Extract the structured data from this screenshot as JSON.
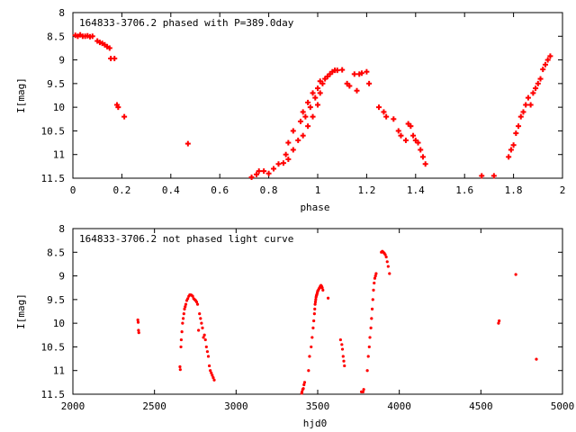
{
  "chart_data": [
    {
      "type": "scatter",
      "title": "164833-3706.2 phased with P=389.0day",
      "xlabel": "phase",
      "ylabel": "I[mag]",
      "xlim": [
        0,
        2
      ],
      "ylim": [
        11.5,
        8
      ],
      "y_inverted": true,
      "x_ticks": [
        "0",
        "0.2",
        "0.4",
        "0.6",
        "0.8",
        "1",
        "1.2",
        "1.4",
        "1.6",
        "1.8",
        "2"
      ],
      "y_ticks": [
        "8",
        "8.5",
        "9",
        "9.5",
        "10",
        "10.5",
        "11",
        "11.5"
      ],
      "x_tick_values": [
        0,
        0.2,
        0.4,
        0.6,
        0.8,
        1,
        1.2,
        1.4,
        1.6,
        1.8,
        2
      ],
      "y_tick_values": [
        8,
        8.5,
        9,
        9.5,
        10,
        10.5,
        11,
        11.5
      ],
      "grid": false,
      "marker": "plus",
      "color": "#ff0000",
      "series": [
        {
          "values": [
            [
              0.01,
              8.48
            ],
            [
              0.02,
              8.5
            ],
            [
              0.03,
              8.47
            ],
            [
              0.04,
              8.5
            ],
            [
              0.05,
              8.5
            ],
            [
              0.06,
              8.49
            ],
            [
              0.07,
              8.51
            ],
            [
              0.08,
              8.5
            ],
            [
              0.1,
              8.6
            ],
            [
              0.11,
              8.63
            ],
            [
              0.12,
              8.65
            ],
            [
              0.13,
              8.68
            ],
            [
              0.14,
              8.72
            ],
            [
              0.15,
              8.75
            ],
            [
              0.155,
              8.97
            ],
            [
              0.17,
              8.97
            ],
            [
              0.18,
              9.95
            ],
            [
              0.185,
              10.0
            ],
            [
              0.21,
              10.2
            ],
            [
              0.47,
              10.77
            ],
            [
              0.73,
              11.48
            ],
            [
              0.75,
              11.42
            ],
            [
              0.76,
              11.35
            ],
            [
              0.78,
              11.35
            ],
            [
              0.8,
              11.4
            ],
            [
              0.82,
              11.3
            ],
            [
              0.84,
              11.2
            ],
            [
              0.86,
              11.18
            ],
            [
              0.87,
              11.0
            ],
            [
              0.88,
              11.1
            ],
            [
              0.88,
              10.75
            ],
            [
              0.9,
              10.5
            ],
            [
              0.9,
              10.9
            ],
            [
              0.92,
              10.7
            ],
            [
              0.93,
              10.3
            ],
            [
              0.94,
              10.1
            ],
            [
              0.94,
              10.6
            ],
            [
              0.95,
              10.2
            ],
            [
              0.96,
              9.9
            ],
            [
              0.96,
              10.4
            ],
            [
              0.97,
              10.0
            ],
            [
              0.98,
              9.7
            ],
            [
              0.98,
              10.2
            ],
            [
              0.99,
              9.8
            ],
            [
              1.0,
              9.6
            ],
            [
              1.0,
              9.95
            ],
            [
              1.01,
              9.45
            ],
            [
              1.01,
              9.7
            ],
            [
              1.02,
              9.5
            ],
            [
              1.03,
              9.4
            ],
            [
              1.04,
              9.35
            ],
            [
              1.05,
              9.3
            ],
            [
              1.06,
              9.25
            ],
            [
              1.07,
              9.22
            ],
            [
              1.08,
              9.22
            ],
            [
              1.1,
              9.21
            ],
            [
              1.12,
              9.5
            ],
            [
              1.13,
              9.55
            ],
            [
              1.15,
              9.3
            ],
            [
              1.16,
              9.65
            ],
            [
              1.17,
              9.3
            ],
            [
              1.18,
              9.28
            ],
            [
              1.2,
              9.25
            ],
            [
              1.21,
              9.5
            ],
            [
              1.25,
              10.0
            ],
            [
              1.27,
              10.1
            ],
            [
              1.28,
              10.2
            ],
            [
              1.31,
              10.25
            ],
            [
              1.33,
              10.5
            ],
            [
              1.34,
              10.6
            ],
            [
              1.36,
              10.7
            ],
            [
              1.37,
              10.35
            ],
            [
              1.38,
              10.4
            ],
            [
              1.39,
              10.6
            ],
            [
              1.4,
              10.7
            ],
            [
              1.41,
              10.75
            ],
            [
              1.42,
              10.9
            ],
            [
              1.43,
              11.05
            ],
            [
              1.44,
              11.2
            ],
            [
              1.67,
              11.45
            ],
            [
              1.72,
              11.45
            ],
            [
              1.78,
              11.05
            ],
            [
              1.79,
              10.9
            ],
            [
              1.8,
              10.8
            ],
            [
              1.81,
              10.55
            ],
            [
              1.82,
              10.4
            ],
            [
              1.83,
              10.2
            ],
            [
              1.84,
              10.1
            ],
            [
              1.85,
              9.95
            ],
            [
              1.86,
              9.8
            ],
            [
              1.87,
              9.95
            ],
            [
              1.88,
              9.7
            ],
            [
              1.89,
              9.6
            ],
            [
              1.9,
              9.5
            ],
            [
              1.91,
              9.4
            ],
            [
              1.92,
              9.2
            ],
            [
              1.93,
              9.1
            ],
            [
              1.94,
              9.0
            ],
            [
              1.95,
              8.92
            ]
          ]
        }
      ]
    },
    {
      "type": "scatter",
      "title": "164833-3706.2 not phased light curve",
      "xlabel": "hjd0",
      "ylabel": "I[mag]",
      "xlim": [
        2000,
        5000
      ],
      "ylim": [
        11.5,
        8
      ],
      "y_inverted": true,
      "x_ticks": [
        "2000",
        "2500",
        "3000",
        "3500",
        "4000",
        "4500",
        "5000"
      ],
      "y_ticks": [
        "8",
        "8.5",
        "9",
        "9.5",
        "10",
        "10.5",
        "11",
        "11.5"
      ],
      "x_tick_values": [
        2000,
        2500,
        3000,
        3500,
        4000,
        4500,
        5000
      ],
      "y_tick_values": [
        8,
        8.5,
        9,
        9.5,
        10,
        10.5,
        11,
        11.5
      ],
      "grid": false,
      "marker": "dot",
      "color": "#ff0000",
      "series": [
        {
          "values": [
            [
              2398,
              9.93
            ],
            [
              2400,
              9.98
            ],
            [
              2402,
              10.15
            ],
            [
              2404,
              10.2
            ],
            [
              2656,
              10.92
            ],
            [
              2658,
              10.98
            ],
            [
              2662,
              10.5
            ],
            [
              2664,
              10.35
            ],
            [
              2668,
              10.18
            ],
            [
              2672,
              10.0
            ],
            [
              2676,
              9.9
            ],
            [
              2680,
              9.8
            ],
            [
              2684,
              9.7
            ],
            [
              2688,
              9.65
            ],
            [
              2692,
              9.6
            ],
            [
              2698,
              9.52
            ],
            [
              2704,
              9.48
            ],
            [
              2710,
              9.43
            ],
            [
              2716,
              9.4
            ],
            [
              2722,
              9.4
            ],
            [
              2728,
              9.41
            ],
            [
              2734,
              9.43
            ],
            [
              2740,
              9.48
            ],
            [
              2746,
              9.5
            ],
            [
              2752,
              9.52
            ],
            [
              2758,
              9.55
            ],
            [
              2764,
              9.6
            ],
            [
              2770,
              10.15
            ],
            [
              2776,
              9.8
            ],
            [
              2782,
              9.9
            ],
            [
              2788,
              10.0
            ],
            [
              2794,
              10.1
            ],
            [
              2800,
              10.3
            ],
            [
              2806,
              10.25
            ],
            [
              2812,
              10.35
            ],
            [
              2818,
              10.5
            ],
            [
              2824,
              10.6
            ],
            [
              2830,
              10.7
            ],
            [
              2836,
              10.9
            ],
            [
              2842,
              11.0
            ],
            [
              2848,
              11.05
            ],
            [
              2854,
              11.1
            ],
            [
              2860,
              11.15
            ],
            [
              2866,
              11.2
            ],
            [
              3402,
              11.48
            ],
            [
              3404,
              11.45
            ],
            [
              3408,
              11.4
            ],
            [
              3412,
              11.38
            ],
            [
              3416,
              11.3
            ],
            [
              3420,
              11.25
            ],
            [
              3444,
              11.0
            ],
            [
              3450,
              10.7
            ],
            [
              3460,
              10.5
            ],
            [
              3466,
              10.3
            ],
            [
              3472,
              10.1
            ],
            [
              3476,
              9.95
            ],
            [
              3480,
              9.8
            ],
            [
              3482,
              9.7
            ],
            [
              3484,
              9.6
            ],
            [
              3486,
              9.55
            ],
            [
              3488,
              9.5
            ],
            [
              3490,
              9.45
            ],
            [
              3492,
              9.42
            ],
            [
              3494,
              9.4
            ],
            [
              3496,
              9.38
            ],
            [
              3498,
              9.35
            ],
            [
              3500,
              9.32
            ],
            [
              3504,
              9.3
            ],
            [
              3508,
              9.27
            ],
            [
              3512,
              9.25
            ],
            [
              3516,
              9.22
            ],
            [
              3520,
              9.2
            ],
            [
              3524,
              9.22
            ],
            [
              3528,
              9.25
            ],
            [
              3532,
              9.3
            ],
            [
              3564,
              9.47
            ],
            [
              3640,
              10.35
            ],
            [
              3648,
              10.45
            ],
            [
              3652,
              10.55
            ],
            [
              3656,
              10.7
            ],
            [
              3660,
              10.8
            ],
            [
              3664,
              10.9
            ],
            [
              3768,
              11.45
            ],
            [
              3778,
              11.45
            ],
            [
              3782,
              11.4
            ],
            [
              3804,
              11.0
            ],
            [
              3810,
              10.7
            ],
            [
              3816,
              10.5
            ],
            [
              3820,
              10.3
            ],
            [
              3826,
              10.1
            ],
            [
              3830,
              9.9
            ],
            [
              3834,
              9.7
            ],
            [
              3838,
              9.5
            ],
            [
              3842,
              9.3
            ],
            [
              3846,
              9.15
            ],
            [
              3850,
              9.05
            ],
            [
              3854,
              9.0
            ],
            [
              3858,
              8.95
            ],
            [
              3890,
              8.5
            ],
            [
              3896,
              8.48
            ],
            [
              3902,
              8.5
            ],
            [
              3908,
              8.52
            ],
            [
              3914,
              8.55
            ],
            [
              3920,
              8.6
            ],
            [
              3926,
              8.7
            ],
            [
              3932,
              8.8
            ],
            [
              3940,
              8.95
            ],
            [
              4608,
              10.0
            ],
            [
              4612,
              9.95
            ],
            [
              4714,
              8.97
            ],
            [
              4840,
              10.76
            ]
          ]
        }
      ]
    }
  ]
}
